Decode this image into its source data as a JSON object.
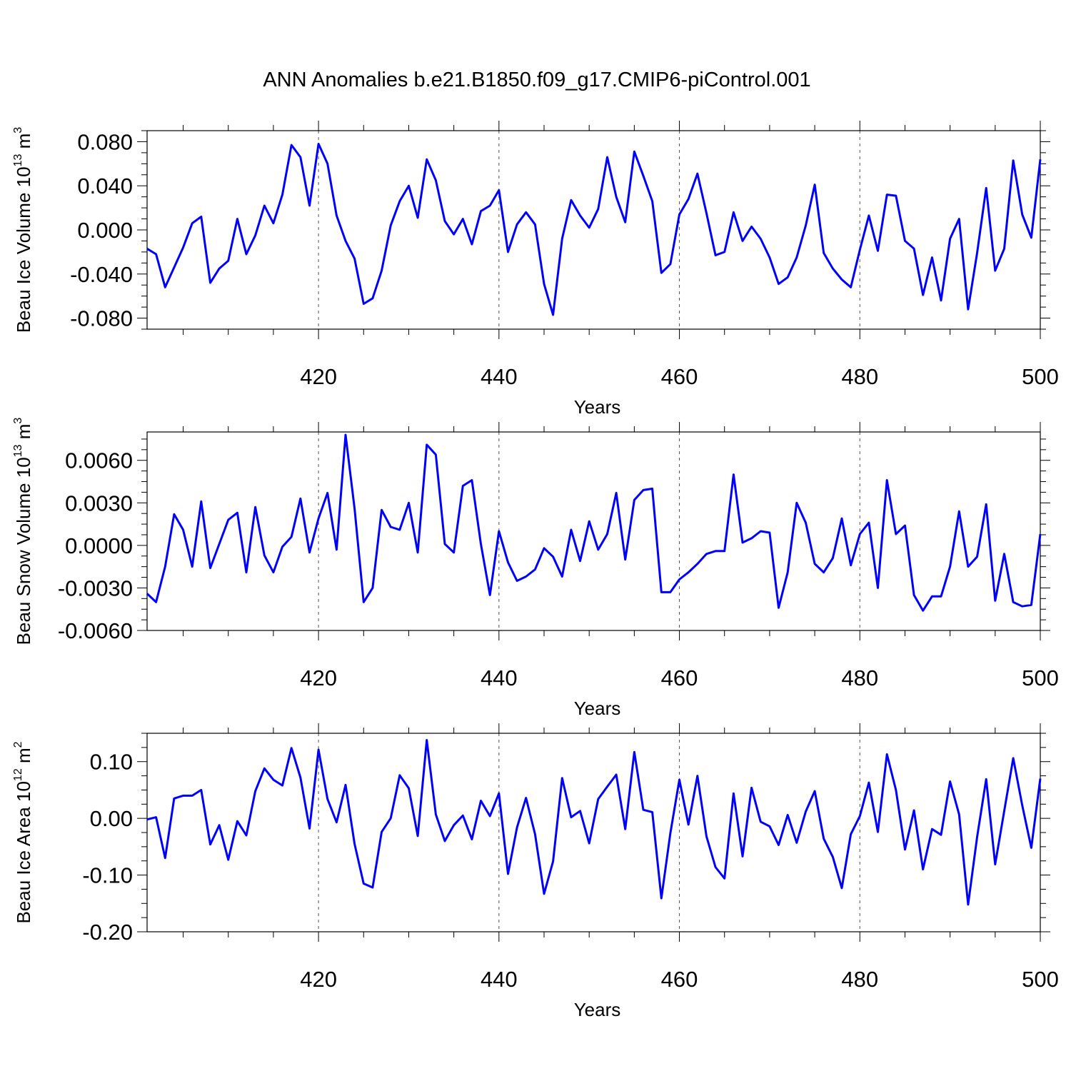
{
  "title": "ANN Anomalies b.e21.B1850.f09_g17.CMIP6-piControl.001",
  "colors": {
    "series": "#0000ff",
    "axes": "#000000",
    "refline": "#555555"
  },
  "chart_data": [
    {
      "type": "line",
      "ylabel": "Beau Ice Volume 10",
      "ylabel_sup": "13",
      "ylabel_unit": " m",
      "ylabel_unit_sup": "3",
      "xlabel": "Years",
      "xlim": [
        401,
        500
      ],
      "ylim": [
        -0.09,
        0.09
      ],
      "xticks": [
        420,
        440,
        460,
        480,
        500
      ],
      "xtick_labels": [
        "420",
        "440",
        "460",
        "480",
        "500"
      ],
      "yticks": [
        -0.08,
        -0.04,
        0.0,
        0.04,
        0.08
      ],
      "ytick_labels": [
        "-0.080",
        "-0.040",
        "0.000",
        "0.040",
        "0.080"
      ],
      "reference_x": [
        420,
        440,
        460,
        480
      ],
      "x_start": 401,
      "values": [
        -0.017,
        -0.022,
        -0.052,
        -0.034,
        -0.016,
        0.006,
        0.012,
        -0.048,
        -0.035,
        -0.028,
        0.01,
        -0.022,
        -0.005,
        0.022,
        0.006,
        0.032,
        0.077,
        0.066,
        0.022,
        0.078,
        0.06,
        0.013,
        -0.01,
        -0.026,
        -0.067,
        -0.062,
        -0.037,
        0.004,
        0.026,
        0.04,
        0.011,
        0.064,
        0.045,
        0.008,
        -0.004,
        0.01,
        -0.013,
        0.017,
        0.022,
        0.036,
        -0.02,
        0.005,
        0.016,
        0.005,
        -0.049,
        -0.077,
        -0.008,
        0.027,
        0.013,
        0.002,
        0.019,
        0.066,
        0.03,
        0.007,
        0.071,
        0.049,
        0.026,
        -0.039,
        -0.031,
        0.014,
        0.028,
        0.051,
        0.015,
        -0.023,
        -0.02,
        0.016,
        -0.01,
        0.003,
        -0.008,
        -0.025,
        -0.049,
        -0.043,
        -0.025,
        0.004,
        0.041,
        -0.021,
        -0.035,
        -0.045,
        -0.052,
        -0.018,
        0.013,
        -0.019,
        0.032,
        0.031,
        -0.01,
        -0.017,
        -0.059,
        -0.025,
        -0.064,
        -0.008,
        0.01,
        -0.072,
        -0.021,
        0.038,
        -0.037,
        -0.017,
        0.063,
        0.014,
        -0.007,
        0.064
      ]
    },
    {
      "type": "line",
      "ylabel": "Beau Snow Volume 10",
      "ylabel_sup": "13",
      "ylabel_unit": " m",
      "ylabel_unit_sup": "3",
      "xlabel": "Years",
      "xlim": [
        401,
        500
      ],
      "ylim": [
        -0.006,
        0.008
      ],
      "xticks": [
        420,
        440,
        460,
        480,
        500
      ],
      "xtick_labels": [
        "420",
        "440",
        "460",
        "480",
        "500"
      ],
      "yticks": [
        -0.006,
        -0.003,
        0.0,
        0.003,
        0.006
      ],
      "ytick_labels": [
        "-0.0060",
        "-0.0030",
        "0.0000",
        "0.0030",
        "0.0060"
      ],
      "reference_x": [
        420,
        440,
        460,
        480
      ],
      "x_start": 401,
      "values": [
        -0.0034,
        -0.004,
        -0.0015,
        0.0022,
        0.0011,
        -0.0015,
        0.0031,
        -0.0016,
        0.0001,
        0.0018,
        0.0023,
        -0.0019,
        0.0027,
        -0.0007,
        -0.0019,
        -0.0001,
        0.0006,
        0.0033,
        -0.0005,
        0.0019,
        0.0037,
        -0.0003,
        0.0078,
        0.0026,
        -0.004,
        -0.003,
        0.0025,
        0.0013,
        0.0011,
        0.003,
        -0.0005,
        0.0071,
        0.0064,
        0.0001,
        -0.0005,
        0.0042,
        0.0046,
        0.0001,
        -0.0035,
        0.001,
        -0.0012,
        -0.0025,
        -0.0022,
        -0.0017,
        -0.0002,
        -0.0008,
        -0.0022,
        0.0011,
        -0.0011,
        0.0017,
        -0.0003,
        0.0008,
        0.0037,
        -0.001,
        0.0032,
        0.0039,
        0.004,
        -0.0033,
        -0.0033,
        -0.0024,
        -0.0019,
        -0.0013,
        -0.0006,
        -0.0004,
        -0.0004,
        0.005,
        0.0002,
        0.0005,
        0.001,
        0.0009,
        -0.0044,
        -0.0019,
        0.003,
        0.0016,
        -0.0013,
        -0.0019,
        -0.0009,
        0.0019,
        -0.0014,
        0.0008,
        0.0016,
        -0.003,
        0.0046,
        0.0008,
        0.0014,
        -0.0035,
        -0.0046,
        -0.0036,
        -0.0036,
        -0.0015,
        0.0024,
        -0.0015,
        -0.0008,
        0.0029,
        -0.0039,
        -0.0006,
        -0.004,
        -0.0043,
        -0.0042,
        0.0008
      ]
    },
    {
      "type": "line",
      "ylabel": "Beau Ice Area 10",
      "ylabel_sup": "12",
      "ylabel_unit": " m",
      "ylabel_unit_sup": "2",
      "xlabel": "Years",
      "xlim": [
        401,
        500
      ],
      "ylim": [
        -0.2,
        0.15
      ],
      "xticks": [
        420,
        440,
        460,
        480,
        500
      ],
      "xtick_labels": [
        "420",
        "440",
        "460",
        "480",
        "500"
      ],
      "yticks": [
        -0.2,
        -0.1,
        0.0,
        0.1
      ],
      "ytick_labels": [
        "-0.20",
        "-0.10",
        "0.00",
        "0.10"
      ],
      "reference_x": [
        420,
        440,
        460,
        480
      ],
      "x_start": 401,
      "values": [
        -0.002,
        0.002,
        -0.07,
        0.035,
        0.04,
        0.04,
        0.05,
        -0.046,
        -0.012,
        -0.073,
        -0.005,
        -0.03,
        0.048,
        0.088,
        0.068,
        0.058,
        0.124,
        0.072,
        -0.018,
        0.121,
        0.034,
        -0.007,
        0.059,
        -0.045,
        -0.115,
        -0.122,
        -0.024,
        0.0,
        0.076,
        0.053,
        -0.031,
        0.138,
        0.007,
        -0.04,
        -0.012,
        0.005,
        -0.037,
        0.031,
        0.004,
        0.044,
        -0.098,
        -0.016,
        0.036,
        -0.028,
        -0.133,
        -0.076,
        0.071,
        0.002,
        0.013,
        -0.044,
        0.034,
        0.056,
        0.077,
        -0.019,
        0.117,
        0.015,
        0.011,
        -0.141,
        -0.026,
        0.068,
        -0.011,
        0.075,
        -0.032,
        -0.086,
        -0.106,
        0.044,
        -0.067,
        0.054,
        -0.006,
        -0.014,
        -0.047,
        0.006,
        -0.043,
        0.012,
        0.048,
        -0.036,
        -0.068,
        -0.123,
        -0.028,
        0.004,
        0.063,
        -0.024,
        0.113,
        0.05,
        -0.055,
        0.014,
        -0.09,
        -0.019,
        -0.029,
        0.065,
        0.007,
        -0.152,
        -0.033,
        0.069,
        -0.081,
        0.013,
        0.106,
        0.023,
        -0.052,
        0.07
      ]
    }
  ]
}
